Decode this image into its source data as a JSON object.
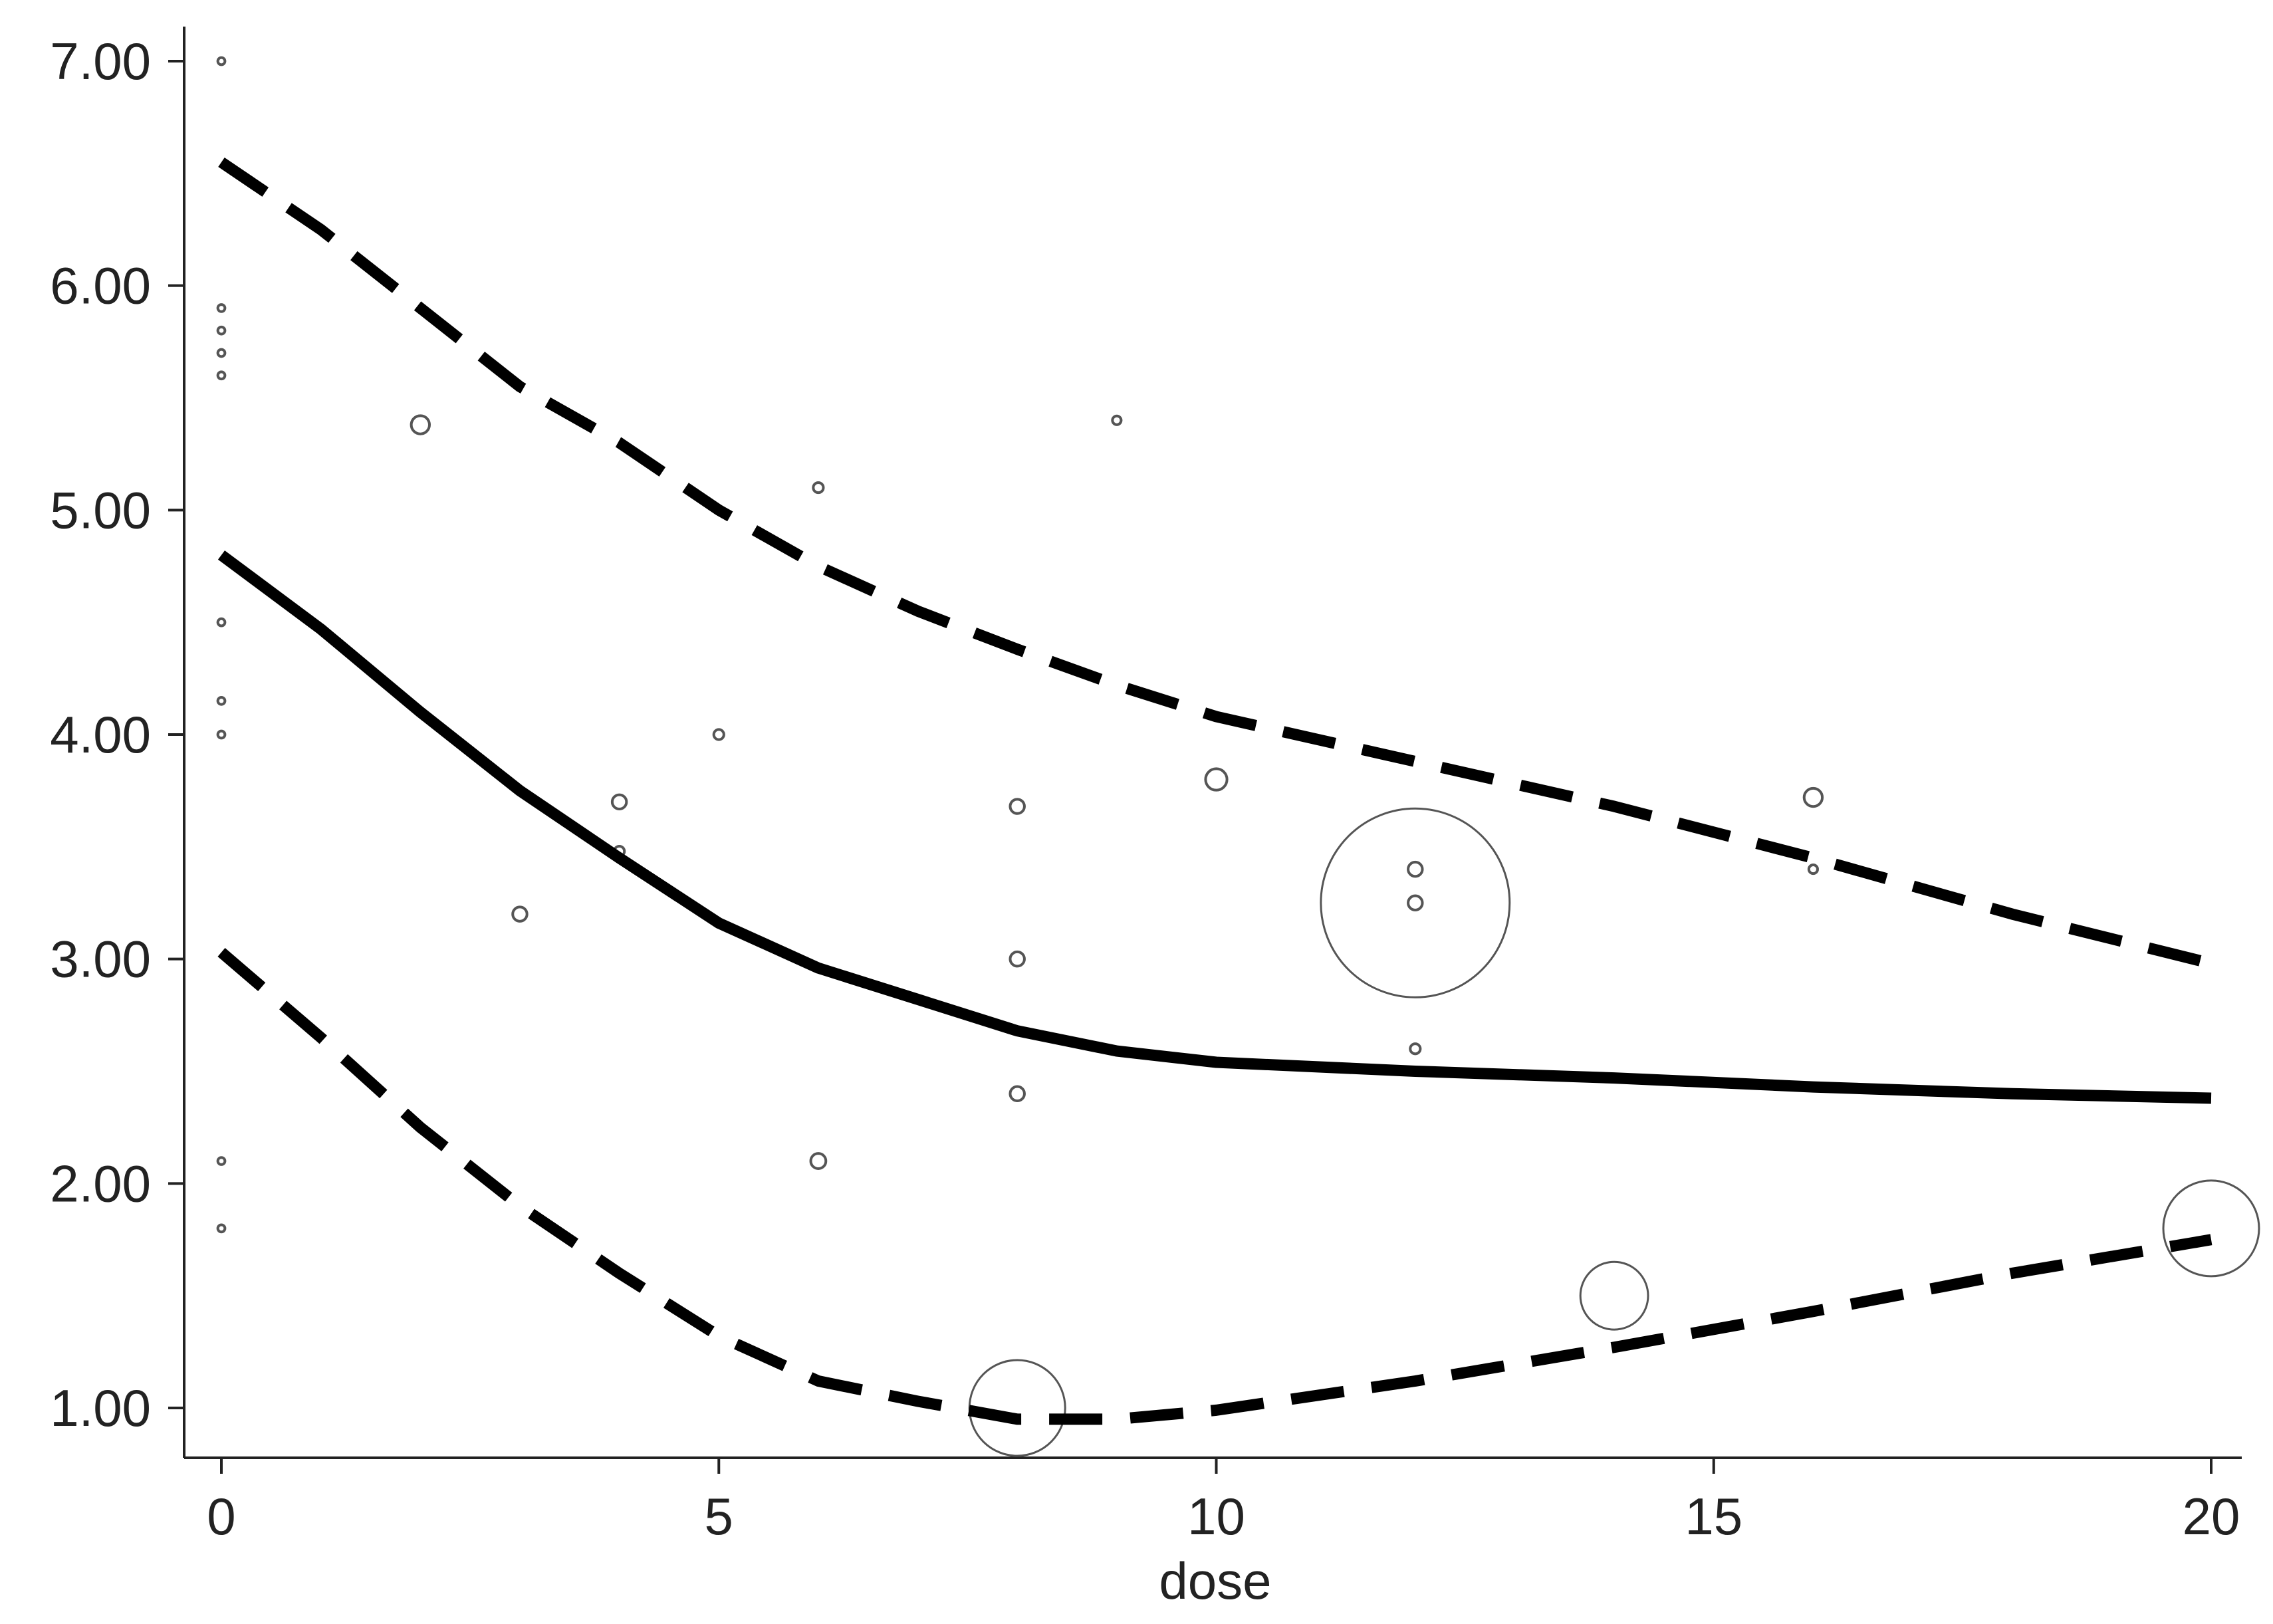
{
  "chart_data": {
    "type": "scatter",
    "title": "",
    "xlabel": "dose",
    "ylabel": "",
    "xlim": [
      0,
      20
    ],
    "ylim": [
      1.0,
      7.0
    ],
    "grid": false,
    "legend": "none",
    "x_ticks": [
      0,
      5,
      10,
      15,
      20
    ],
    "x_tick_labels": [
      "0",
      "5",
      "10",
      "15",
      "20"
    ],
    "y_ticks": [
      1,
      2,
      3,
      4,
      5,
      6,
      7
    ],
    "y_tick_labels": [
      "1.00",
      "2.00",
      "3.00",
      "4.00",
      "5.00",
      "6.00",
      "7.00"
    ],
    "points": [
      {
        "x": 0,
        "y": 7.0,
        "w": 0.2
      },
      {
        "x": 0,
        "y": 5.9,
        "w": 0.2
      },
      {
        "x": 0,
        "y": 5.8,
        "w": 0.2
      },
      {
        "x": 0,
        "y": 5.7,
        "w": 0.2
      },
      {
        "x": 0,
        "y": 5.6,
        "w": 0.2
      },
      {
        "x": 0,
        "y": 4.5,
        "w": 0.2
      },
      {
        "x": 0,
        "y": 4.15,
        "w": 0.2
      },
      {
        "x": 0,
        "y": 4.0,
        "w": 0.2
      },
      {
        "x": 0,
        "y": 2.1,
        "w": 0.2
      },
      {
        "x": 0,
        "y": 1.8,
        "w": 0.2
      },
      {
        "x": 2,
        "y": 5.38,
        "w": 1.3
      },
      {
        "x": 3,
        "y": 3.2,
        "w": 0.8
      },
      {
        "x": 4,
        "y": 3.7,
        "w": 0.8
      },
      {
        "x": 4,
        "y": 3.48,
        "w": 0.4
      },
      {
        "x": 5,
        "y": 4.0,
        "w": 0.4
      },
      {
        "x": 6,
        "y": 5.1,
        "w": 0.4
      },
      {
        "x": 6,
        "y": 2.1,
        "w": 0.9
      },
      {
        "x": 8,
        "y": 3.68,
        "w": 0.8
      },
      {
        "x": 8,
        "y": 3.0,
        "w": 0.8
      },
      {
        "x": 8,
        "y": 2.4,
        "w": 0.8
      },
      {
        "x": 8,
        "y": 1.0,
        "w": 36
      },
      {
        "x": 9,
        "y": 5.4,
        "w": 0.3
      },
      {
        "x": 10,
        "y": 3.8,
        "w": 1.8
      },
      {
        "x": 12,
        "y": 3.4,
        "w": 0.8
      },
      {
        "x": 12,
        "y": 3.25,
        "w": 0.8
      },
      {
        "x": 12,
        "y": 3.25,
        "w": 140
      },
      {
        "x": 12,
        "y": 2.6,
        "w": 0.4
      },
      {
        "x": 14,
        "y": 1.5,
        "w": 18
      },
      {
        "x": 16,
        "y": 3.72,
        "w": 1.3
      },
      {
        "x": 16,
        "y": 3.4,
        "w": 0.3
      },
      {
        "x": 20,
        "y": 1.8,
        "w": 36
      }
    ],
    "series": [
      {
        "style": "solid",
        "x": [
          0,
          1,
          2,
          3,
          4,
          5,
          6,
          7,
          8,
          9,
          10,
          12,
          14,
          16,
          18,
          20
        ],
        "y": [
          4.8,
          4.47,
          4.1,
          3.75,
          3.45,
          3.16,
          2.96,
          2.82,
          2.68,
          2.59,
          2.54,
          2.5,
          2.47,
          2.43,
          2.4,
          2.38
        ]
      },
      {
        "style": "dashed",
        "x": [
          0,
          1,
          2,
          3,
          4,
          5,
          6,
          7,
          8,
          9,
          10,
          12,
          14,
          16,
          18,
          20
        ],
        "y": [
          6.55,
          6.25,
          5.9,
          5.55,
          5.3,
          5.0,
          4.75,
          4.55,
          4.38,
          4.22,
          4.08,
          3.88,
          3.68,
          3.45,
          3.2,
          2.98
        ]
      },
      {
        "style": "dashed",
        "x": [
          0,
          1,
          2,
          3,
          4,
          5,
          6,
          7,
          8,
          9,
          10,
          12,
          14,
          16,
          18,
          20
        ],
        "y": [
          3.03,
          2.65,
          2.25,
          1.9,
          1.6,
          1.32,
          1.12,
          1.03,
          0.95,
          0.95,
          0.99,
          1.12,
          1.27,
          1.43,
          1.6,
          1.75
        ]
      }
    ]
  }
}
